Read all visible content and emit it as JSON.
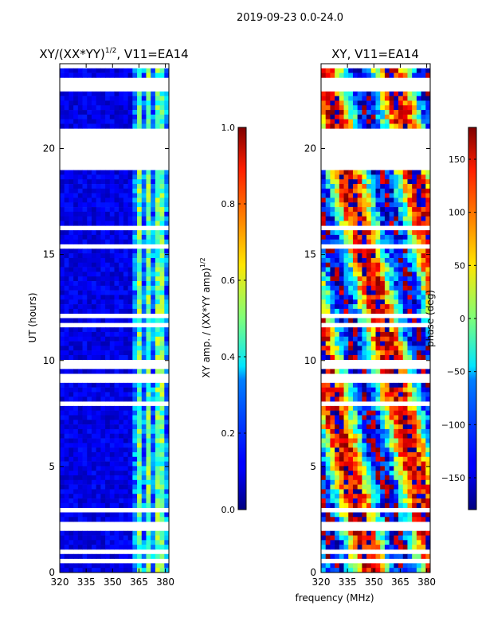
{
  "suptitle": "2019-09-23 0.0-24.0",
  "xlabel_shared": "frequency (MHz)",
  "colors": {
    "background": "#ffffff",
    "gap": "#ffffff",
    "axes": "#000000"
  },
  "colormap": "jet",
  "chart_data": [
    {
      "type": "heatmap",
      "title": "XY/(XX*YY)",
      "title_sup": "1/2",
      "title_suffix": ", V11=EA14",
      "xlabel": "",
      "ylabel": "UT (hours)",
      "xlim": [
        320,
        382
      ],
      "ylim": [
        0,
        24
      ],
      "xticks": [
        320,
        335,
        350,
        365,
        380
      ],
      "yticks": [
        0,
        5,
        10,
        15,
        20
      ],
      "value_range": [
        0.0,
        1.0
      ],
      "bright_channels_mhz": [
        [
          364,
          367
        ],
        [
          369,
          371
        ],
        [
          375,
          376
        ],
        [
          378,
          380
        ]
      ],
      "no_data_ut": [
        [
          19.0,
          21.0
        ]
      ],
      "colorbar": {
        "label": "XY amp. / (XX*YY amp)",
        "label_sup": "1/2",
        "ticks": [
          "0.0",
          "0.2",
          "0.4",
          "0.6",
          "0.8",
          "1.0"
        ],
        "tick_values": [
          0.0,
          0.2,
          0.4,
          0.6,
          0.8,
          1.0
        ],
        "range": [
          0.0,
          1.0
        ]
      }
    },
    {
      "type": "heatmap",
      "title": "XY, V11=EA14",
      "xlabel": "frequency (MHz)",
      "ylabel": "",
      "xlim": [
        320,
        382
      ],
      "ylim": [
        0,
        24
      ],
      "xticks": [
        320,
        335,
        350,
        365,
        380
      ],
      "yticks": [
        0,
        5,
        10,
        15,
        20
      ],
      "value_range": [
        -180,
        180
      ],
      "no_data_ut": [
        [
          19.0,
          21.0
        ]
      ],
      "colorbar": {
        "label": "phase (deg)",
        "ticks": [
          "−150",
          "−100",
          "−50",
          "0",
          "50",
          "100",
          "150"
        ],
        "tick_values": [
          -150,
          -100,
          -50,
          0,
          50,
          100,
          150
        ],
        "range": [
          -180,
          180
        ]
      }
    }
  ]
}
